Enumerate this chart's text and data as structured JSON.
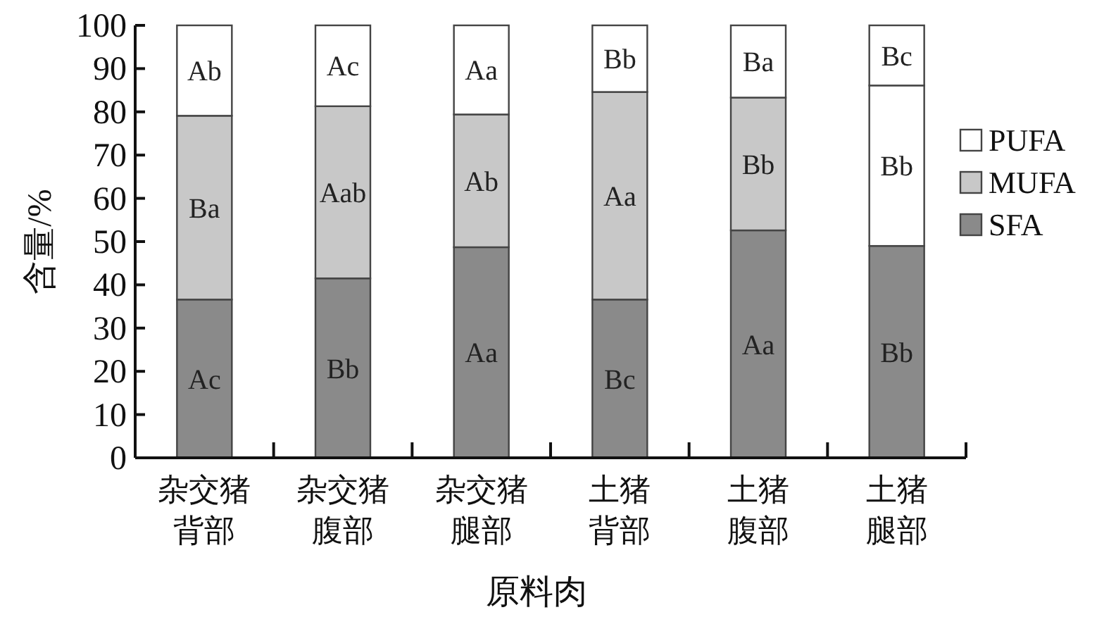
{
  "chart_data": {
    "type": "bar",
    "stacked": true,
    "xlabel": "原料肉",
    "ylabel": "含量/%",
    "categories": [
      "杂交猪背部",
      "杂交猪腹部",
      "杂交猪腿部",
      "土猪背部",
      "土猪腹部",
      "土猪腿部"
    ],
    "series": [
      {
        "name": "SFA",
        "color": "#8a8a8a",
        "values": [
          36.6,
          41.5,
          48.7,
          36.6,
          52.6,
          49.0
        ],
        "value_labels": [
          "Ac",
          "Bb",
          "Aa",
          "Bc",
          "Aa",
          "Bb"
        ]
      },
      {
        "name": "MUFA",
        "color": "#c8c8c8",
        "colors": [
          "#c8c8c8",
          "#c8c8c8",
          "#c8c8c8",
          "#c8c8c8",
          "#c8c8c8",
          "#ffffff"
        ],
        "values": [
          42.5,
          39.8,
          30.7,
          48.0,
          30.7,
          37.1
        ],
        "value_labels": [
          "Ba",
          "Aab",
          "Ab",
          "Aa",
          "Bb",
          "Bb"
        ]
      },
      {
        "name": "PUFA",
        "color": "#ffffff",
        "values": [
          20.9,
          18.7,
          20.6,
          15.4,
          16.7,
          13.9
        ],
        "value_labels": [
          "Ab",
          "Ac",
          "Aa",
          "Bb",
          "Ba",
          "Bc"
        ]
      }
    ],
    "ylim": [
      0,
      100
    ],
    "yticks": [
      0,
      10,
      20,
      30,
      40,
      50,
      60,
      70,
      80,
      90,
      100
    ],
    "grid": false,
    "legend": "right"
  }
}
